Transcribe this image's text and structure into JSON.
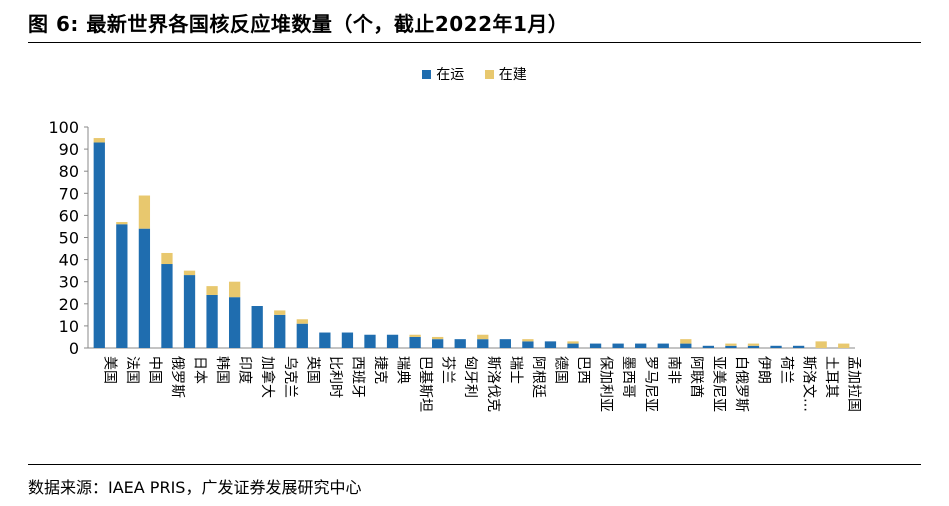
{
  "title": "图 6: 最新世界各国核反应堆数量（个，截止2022年1月）",
  "source": "数据来源：IAEA PRIS，广发证券发展研究中心",
  "colors": {
    "operating": "#1F6DAF",
    "construction": "#E8C86E"
  },
  "chart_data": {
    "type": "bar",
    "stacked": true,
    "ylim": [
      0,
      100
    ],
    "yticks": [
      0,
      10,
      20,
      30,
      40,
      50,
      60,
      70,
      80,
      90,
      100
    ],
    "grid": false,
    "legend_position": "top-center",
    "categories": [
      "美国",
      "法国",
      "中国",
      "俄罗斯",
      "日本",
      "韩国",
      "印度",
      "加拿大",
      "乌克兰",
      "英国",
      "比利时",
      "西班牙",
      "捷克",
      "瑞典",
      "巴基斯坦",
      "芬兰",
      "匈牙利",
      "斯洛伐克",
      "瑞士",
      "阿根廷",
      "德国",
      "巴西",
      "保加利亚",
      "墨西哥",
      "罗马尼亚",
      "南非",
      "阿联酋",
      "亚美尼亚",
      "白俄罗斯",
      "伊朗",
      "荷兰",
      "斯洛文…",
      "土耳其",
      "孟加拉国"
    ],
    "series": [
      {
        "name": "在运",
        "values": [
          93,
          56,
          54,
          38,
          33,
          24,
          23,
          19,
          15,
          11,
          7,
          7,
          6,
          6,
          5,
          4,
          4,
          4,
          4,
          3,
          3,
          2,
          2,
          2,
          2,
          2,
          2,
          1,
          1,
          1,
          1,
          1,
          0,
          0
        ]
      },
      {
        "name": "在建",
        "values": [
          2,
          1,
          15,
          5,
          2,
          4,
          7,
          0,
          2,
          2,
          0,
          0,
          0,
          0,
          1,
          1,
          0,
          2,
          0,
          1,
          0,
          1,
          0,
          0,
          0,
          0,
          2,
          0,
          1,
          1,
          0,
          0,
          3,
          2
        ]
      }
    ]
  }
}
